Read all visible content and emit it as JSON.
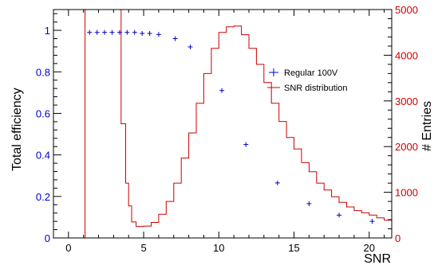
{
  "chart_data": {
    "type": "line",
    "xlabel": "SNR",
    "ylabel_left": "Total efficiency",
    "ylabel_right": "# Entries",
    "xlim": [
      -1,
      21.5
    ],
    "ylim_left": [
      0,
      1.1
    ],
    "ylim_right": [
      0,
      5000
    ],
    "grid": false,
    "legend_position": "top-right",
    "x_ticks": [
      0,
      5,
      10,
      15,
      20
    ],
    "y_left_ticks": [
      0,
      0.2,
      0.4,
      0.6,
      0.8,
      1
    ],
    "y_right_ticks": [
      0,
      1000,
      2000,
      3000,
      4000,
      5000
    ],
    "colors": {
      "efficiency": "#0000cc",
      "distribution": "#cc0000",
      "right_axis": "#cc0000",
      "left_axis": "#0000cc"
    },
    "series": [
      {
        "name": "Regular 100V",
        "axis": "left",
        "marker": "cross",
        "points": [
          [
            1.4,
            0.99
          ],
          [
            1.9,
            0.99
          ],
          [
            2.4,
            0.99
          ],
          [
            2.9,
            0.99
          ],
          [
            3.4,
            0.99
          ],
          [
            3.9,
            0.99
          ],
          [
            4.4,
            0.99
          ],
          [
            4.9,
            0.985
          ],
          [
            5.4,
            0.985
          ],
          [
            6.0,
            0.98
          ],
          [
            7.1,
            0.96
          ],
          [
            8.1,
            0.92
          ],
          [
            10.2,
            0.71
          ],
          [
            11.8,
            0.45
          ],
          [
            13.9,
            0.265
          ],
          [
            16.0,
            0.165
          ],
          [
            18.0,
            0.11
          ],
          [
            20.2,
            0.08
          ]
        ]
      },
      {
        "name": "SNR distribution",
        "axis": "right",
        "style": "step",
        "points": [
          [
            1.1,
            0
          ],
          [
            1.1,
            5000
          ],
          [
            3.2,
            5000
          ],
          [
            3.5,
            2500
          ],
          [
            3.8,
            1200
          ],
          [
            4.0,
            700
          ],
          [
            4.2,
            350
          ],
          [
            4.5,
            250
          ],
          [
            5.0,
            260
          ],
          [
            5.5,
            340
          ],
          [
            6.0,
            520
          ],
          [
            6.5,
            800
          ],
          [
            7.0,
            1200
          ],
          [
            7.5,
            1750
          ],
          [
            8.0,
            2300
          ],
          [
            8.5,
            2950
          ],
          [
            9.0,
            3600
          ],
          [
            9.5,
            4150
          ],
          [
            10.0,
            4500
          ],
          [
            10.5,
            4620
          ],
          [
            11.0,
            4640
          ],
          [
            11.5,
            4450
          ],
          [
            12.0,
            4150
          ],
          [
            12.5,
            3800
          ],
          [
            13.0,
            3400
          ],
          [
            13.5,
            2950
          ],
          [
            14.0,
            2550
          ],
          [
            14.5,
            2200
          ],
          [
            15.0,
            1950
          ],
          [
            15.5,
            1650
          ],
          [
            16.0,
            1450
          ],
          [
            16.5,
            1200
          ],
          [
            17.0,
            1050
          ],
          [
            17.5,
            900
          ],
          [
            18.0,
            780
          ],
          [
            18.5,
            680
          ],
          [
            19.0,
            600
          ],
          [
            19.5,
            550
          ],
          [
            20.0,
            500
          ],
          [
            20.5,
            440
          ],
          [
            21.0,
            390
          ],
          [
            21.5,
            350
          ]
        ]
      }
    ]
  }
}
